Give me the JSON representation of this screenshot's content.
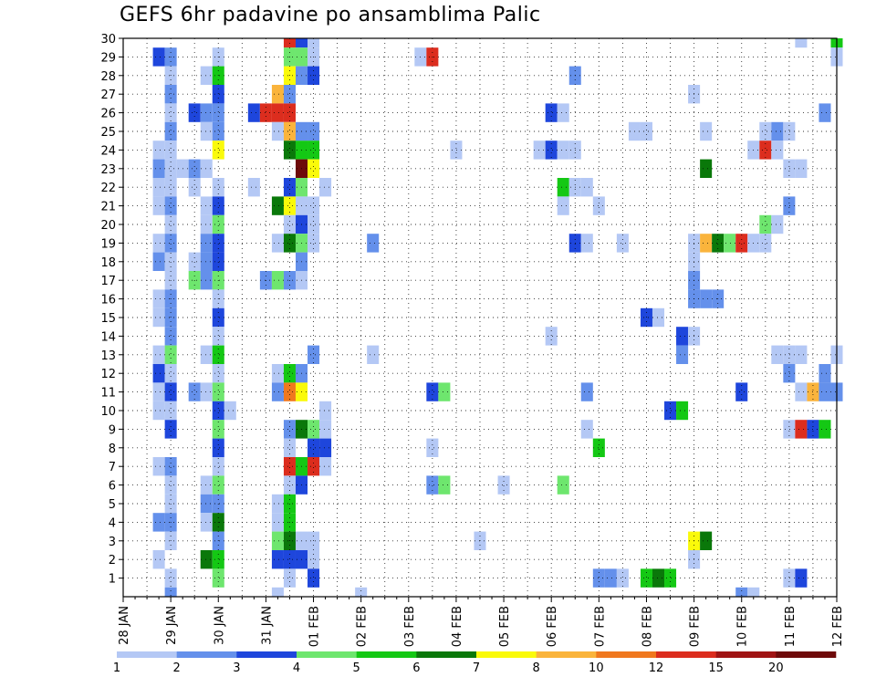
{
  "chart_data": {
    "type": "heatmap",
    "title": "GEFS 6hr padavine po ansamblima Palic",
    "xlabel": "",
    "ylabel": "",
    "x_ticks": [
      "28 JAN",
      "29 JAN",
      "30 JAN",
      "31 JAN",
      "01 FEB",
      "02 FEB",
      "03 FEB",
      "04 FEB",
      "05 FEB",
      "06 FEB",
      "07 FEB",
      "08 FEB",
      "09 FEB",
      "10 FEB",
      "11 FEB",
      "12 FEB"
    ],
    "x_range_days": [
      0,
      15
    ],
    "members": [
      1,
      2,
      3,
      4,
      5,
      6,
      7,
      8,
      9,
      10,
      11,
      12,
      13,
      14,
      15,
      16,
      17,
      18,
      19,
      20,
      21,
      22,
      23,
      24,
      25,
      26,
      27,
      28,
      29,
      30
    ],
    "legend_levels": [
      "1",
      "2",
      "3",
      "4",
      "5",
      "6",
      "7",
      "8",
      "10",
      "12",
      "15",
      "20"
    ],
    "legend_colors": [
      "#b4c8f5",
      "#6490eb",
      "#1e46dc",
      "#6ee66e",
      "#14c814",
      "#0a780a",
      "#fafa0a",
      "#fab43c",
      "#f0781e",
      "#dc2d1e",
      "#a01414",
      "#6e0a0a"
    ],
    "cells_note": "each cell: [member, day offset from 28 JAN (0.25 = 6 h), color level index 0-11]",
    "cells": [
      [
        30,
        3.5,
        9
      ],
      [
        30,
        3.75,
        2
      ],
      [
        30,
        4.0,
        0
      ],
      [
        30,
        14.25,
        0
      ],
      [
        30,
        15.0,
        4
      ],
      [
        29,
        0.75,
        2
      ],
      [
        29,
        1.0,
        1
      ],
      [
        29,
        2.0,
        0
      ],
      [
        29,
        3.5,
        3
      ],
      [
        29,
        3.75,
        3
      ],
      [
        29,
        4.0,
        0
      ],
      [
        29,
        6.25,
        0
      ],
      [
        29,
        6.5,
        9
      ],
      [
        29,
        15.0,
        0
      ],
      [
        28,
        1.0,
        0
      ],
      [
        28,
        1.75,
        0
      ],
      [
        28,
        2.0,
        4
      ],
      [
        28,
        3.5,
        6
      ],
      [
        28,
        3.75,
        1
      ],
      [
        28,
        4.0,
        2
      ],
      [
        28,
        9.5,
        1
      ],
      [
        27,
        1.0,
        1
      ],
      [
        27,
        2.0,
        2
      ],
      [
        27,
        3.25,
        7
      ],
      [
        27,
        3.5,
        1
      ],
      [
        27,
        12.0,
        0
      ],
      [
        26,
        1.0,
        0
      ],
      [
        26,
        1.5,
        2
      ],
      [
        26,
        1.75,
        1
      ],
      [
        26,
        2.0,
        1
      ],
      [
        26,
        2.75,
        2
      ],
      [
        26,
        3.0,
        9
      ],
      [
        26,
        3.25,
        9
      ],
      [
        26,
        3.5,
        9
      ],
      [
        26,
        9.0,
        2
      ],
      [
        26,
        9.25,
        0
      ],
      [
        26,
        14.75,
        1
      ],
      [
        25,
        1.0,
        1
      ],
      [
        25,
        1.75,
        0
      ],
      [
        25,
        2.0,
        1
      ],
      [
        25,
        3.25,
        0
      ],
      [
        25,
        3.5,
        7
      ],
      [
        25,
        3.75,
        1
      ],
      [
        25,
        4.0,
        1
      ],
      [
        25,
        10.75,
        0
      ],
      [
        25,
        11.0,
        0
      ],
      [
        25,
        12.25,
        0
      ],
      [
        25,
        13.5,
        0
      ],
      [
        25,
        13.75,
        1
      ],
      [
        25,
        14.0,
        0
      ],
      [
        24,
        0.75,
        0
      ],
      [
        24,
        1.0,
        0
      ],
      [
        24,
        2.0,
        6
      ],
      [
        24,
        3.5,
        5
      ],
      [
        24,
        3.75,
        4
      ],
      [
        24,
        4.0,
        4
      ],
      [
        24,
        7.0,
        0
      ],
      [
        24,
        8.75,
        0
      ],
      [
        24,
        9.0,
        2
      ],
      [
        24,
        9.25,
        0
      ],
      [
        24,
        9.5,
        0
      ],
      [
        24,
        13.25,
        0
      ],
      [
        24,
        13.5,
        9
      ],
      [
        24,
        13.75,
        0
      ],
      [
        23,
        0.75,
        1
      ],
      [
        23,
        1.0,
        0
      ],
      [
        23,
        1.25,
        0
      ],
      [
        23,
        1.5,
        1
      ],
      [
        23,
        1.75,
        0
      ],
      [
        23,
        3.75,
        11
      ],
      [
        23,
        4.0,
        6
      ],
      [
        23,
        12.25,
        5
      ],
      [
        23,
        14.0,
        0
      ],
      [
        23,
        14.25,
        0
      ],
      [
        22,
        0.75,
        0
      ],
      [
        22,
        1.0,
        0
      ],
      [
        22,
        1.5,
        0
      ],
      [
        22,
        2.0,
        0
      ],
      [
        22,
        2.75,
        0
      ],
      [
        22,
        3.5,
        2
      ],
      [
        22,
        3.75,
        3
      ],
      [
        22,
        4.25,
        0
      ],
      [
        22,
        9.25,
        4
      ],
      [
        22,
        9.5,
        0
      ],
      [
        22,
        9.75,
        0
      ],
      [
        21,
        0.75,
        0
      ],
      [
        21,
        1.0,
        1
      ],
      [
        21,
        1.75,
        0
      ],
      [
        21,
        2.0,
        2
      ],
      [
        21,
        3.25,
        5
      ],
      [
        21,
        3.5,
        6
      ],
      [
        21,
        3.75,
        0
      ],
      [
        21,
        4.0,
        0
      ],
      [
        21,
        9.25,
        0
      ],
      [
        21,
        10.0,
        0
      ],
      [
        21,
        14.0,
        1
      ],
      [
        20,
        1.0,
        0
      ],
      [
        20,
        1.75,
        0
      ],
      [
        20,
        2.0,
        3
      ],
      [
        20,
        3.5,
        0
      ],
      [
        20,
        3.75,
        2
      ],
      [
        20,
        4.0,
        0
      ],
      [
        20,
        13.5,
        3
      ],
      [
        20,
        13.75,
        0
      ],
      [
        19,
        0.75,
        0
      ],
      [
        19,
        1.0,
        1
      ],
      [
        19,
        1.75,
        1
      ],
      [
        19,
        2.0,
        2
      ],
      [
        19,
        3.25,
        0
      ],
      [
        19,
        3.5,
        5
      ],
      [
        19,
        3.75,
        3
      ],
      [
        19,
        4.0,
        0
      ],
      [
        19,
        5.25,
        1
      ],
      [
        19,
        9.5,
        2
      ],
      [
        19,
        9.75,
        0
      ],
      [
        19,
        10.5,
        0
      ],
      [
        19,
        12.0,
        0
      ],
      [
        19,
        12.25,
        7
      ],
      [
        19,
        12.5,
        5
      ],
      [
        19,
        12.75,
        3
      ],
      [
        19,
        13.0,
        9
      ],
      [
        19,
        13.25,
        0
      ],
      [
        19,
        13.5,
        0
      ],
      [
        18,
        0.75,
        1
      ],
      [
        18,
        1.0,
        0
      ],
      [
        18,
        1.5,
        0
      ],
      [
        18,
        1.75,
        1
      ],
      [
        18,
        2.0,
        2
      ],
      [
        18,
        3.75,
        1
      ],
      [
        18,
        12.0,
        0
      ],
      [
        17,
        1.0,
        0
      ],
      [
        17,
        1.5,
        3
      ],
      [
        17,
        1.75,
        1
      ],
      [
        17,
        2.0,
        3
      ],
      [
        17,
        3.0,
        1
      ],
      [
        17,
        3.25,
        3
      ],
      [
        17,
        3.5,
        1
      ],
      [
        17,
        3.75,
        0
      ],
      [
        17,
        12.0,
        1
      ],
      [
        16,
        0.75,
        0
      ],
      [
        16,
        1.0,
        1
      ],
      [
        16,
        2.0,
        0
      ],
      [
        16,
        12.0,
        1
      ],
      [
        16,
        12.25,
        1
      ],
      [
        16,
        12.5,
        1
      ],
      [
        15,
        0.75,
        0
      ],
      [
        15,
        1.0,
        1
      ],
      [
        15,
        2.0,
        2
      ],
      [
        15,
        11.0,
        2
      ],
      [
        15,
        11.25,
        0
      ],
      [
        14,
        1.0,
        1
      ],
      [
        14,
        2.0,
        0
      ],
      [
        14,
        9.0,
        0
      ],
      [
        14,
        11.75,
        2
      ],
      [
        14,
        12.0,
        0
      ],
      [
        13,
        0.75,
        0
      ],
      [
        13,
        1.0,
        3
      ],
      [
        13,
        1.75,
        0
      ],
      [
        13,
        2.0,
        4
      ],
      [
        13,
        4.0,
        1
      ],
      [
        13,
        5.25,
        0
      ],
      [
        13,
        11.75,
        1
      ],
      [
        13,
        13.75,
        0
      ],
      [
        13,
        14.0,
        0
      ],
      [
        13,
        14.25,
        0
      ],
      [
        13,
        15.0,
        0
      ],
      [
        12,
        0.75,
        2
      ],
      [
        12,
        1.0,
        0
      ],
      [
        12,
        2.0,
        0
      ],
      [
        12,
        3.25,
        0
      ],
      [
        12,
        3.5,
        4
      ],
      [
        12,
        3.75,
        1
      ],
      [
        12,
        14.0,
        1
      ],
      [
        12,
        14.75,
        1
      ],
      [
        11,
        0.75,
        0
      ],
      [
        11,
        1.0,
        2
      ],
      [
        11,
        1.5,
        1
      ],
      [
        11,
        1.75,
        0
      ],
      [
        11,
        2.0,
        3
      ],
      [
        11,
        3.25,
        1
      ],
      [
        11,
        3.5,
        8
      ],
      [
        11,
        3.75,
        6
      ],
      [
        11,
        6.5,
        2
      ],
      [
        11,
        6.75,
        3
      ],
      [
        11,
        9.75,
        1
      ],
      [
        11,
        13.0,
        2
      ],
      [
        11,
        14.25,
        0
      ],
      [
        11,
        14.5,
        7
      ],
      [
        11,
        14.75,
        1
      ],
      [
        11,
        15.0,
        1
      ],
      [
        10,
        0.75,
        0
      ],
      [
        10,
        1.0,
        0
      ],
      [
        10,
        2.0,
        2
      ],
      [
        10,
        2.25,
        0
      ],
      [
        10,
        4.25,
        0
      ],
      [
        10,
        11.5,
        2
      ],
      [
        10,
        11.75,
        4
      ],
      [
        9,
        1.0,
        2
      ],
      [
        9,
        2.0,
        3
      ],
      [
        9,
        3.5,
        1
      ],
      [
        9,
        3.75,
        5
      ],
      [
        9,
        4.0,
        3
      ],
      [
        9,
        4.25,
        0
      ],
      [
        9,
        9.75,
        0
      ],
      [
        9,
        14.0,
        0
      ],
      [
        9,
        14.25,
        9
      ],
      [
        9,
        14.5,
        2
      ],
      [
        9,
        14.75,
        4
      ],
      [
        8,
        2.0,
        2
      ],
      [
        8,
        3.5,
        0
      ],
      [
        8,
        4.0,
        2
      ],
      [
        8,
        4.25,
        2
      ],
      [
        8,
        6.5,
        0
      ],
      [
        8,
        10.0,
        4
      ],
      [
        7,
        0.75,
        0
      ],
      [
        7,
        1.0,
        1
      ],
      [
        7,
        2.0,
        0
      ],
      [
        7,
        3.5,
        9
      ],
      [
        7,
        3.75,
        4
      ],
      [
        7,
        4.0,
        9
      ],
      [
        7,
        4.25,
        0
      ],
      [
        6,
        1.0,
        0
      ],
      [
        6,
        1.75,
        0
      ],
      [
        6,
        2.0,
        3
      ],
      [
        6,
        3.5,
        0
      ],
      [
        6,
        3.75,
        2
      ],
      [
        6,
        6.5,
        1
      ],
      [
        6,
        6.75,
        3
      ],
      [
        6,
        8.0,
        0
      ],
      [
        6,
        9.25,
        3
      ],
      [
        5,
        1.0,
        0
      ],
      [
        5,
        1.75,
        1
      ],
      [
        5,
        2.0,
        1
      ],
      [
        5,
        3.25,
        0
      ],
      [
        5,
        3.5,
        4
      ],
      [
        4,
        0.75,
        1
      ],
      [
        4,
        1.0,
        1
      ],
      [
        4,
        1.75,
        0
      ],
      [
        4,
        2.0,
        5
      ],
      [
        4,
        3.25,
        0
      ],
      [
        4,
        3.5,
        4
      ],
      [
        3,
        1.0,
        0
      ],
      [
        3,
        2.0,
        1
      ],
      [
        3,
        3.25,
        3
      ],
      [
        3,
        3.5,
        5
      ],
      [
        3,
        3.75,
        0
      ],
      [
        3,
        4.0,
        0
      ],
      [
        3,
        7.5,
        0
      ],
      [
        3,
        12.0,
        6
      ],
      [
        3,
        12.25,
        5
      ],
      [
        2,
        0.75,
        0
      ],
      [
        2,
        1.75,
        5
      ],
      [
        2,
        2.0,
        4
      ],
      [
        2,
        3.25,
        2
      ],
      [
        2,
        3.5,
        2
      ],
      [
        2,
        3.75,
        2
      ],
      [
        2,
        4.0,
        0
      ],
      [
        2,
        12.0,
        0
      ],
      [
        1,
        1.0,
        0
      ],
      [
        1,
        2.0,
        3
      ],
      [
        1,
        3.5,
        0
      ],
      [
        1,
        4.0,
        2
      ],
      [
        1,
        10.0,
        1
      ],
      [
        1,
        10.25,
        1
      ],
      [
        1,
        10.5,
        0
      ],
      [
        1,
        11.0,
        4
      ],
      [
        1,
        11.25,
        5
      ],
      [
        1,
        11.5,
        4
      ],
      [
        1,
        14.0,
        0
      ],
      [
        1,
        14.25,
        2
      ],
      [
        0,
        1.0,
        1
      ],
      [
        0,
        3.25,
        0
      ],
      [
        0,
        5.0,
        0
      ],
      [
        0,
        13.0,
        1
      ],
      [
        0,
        13.25,
        0
      ]
    ]
  }
}
